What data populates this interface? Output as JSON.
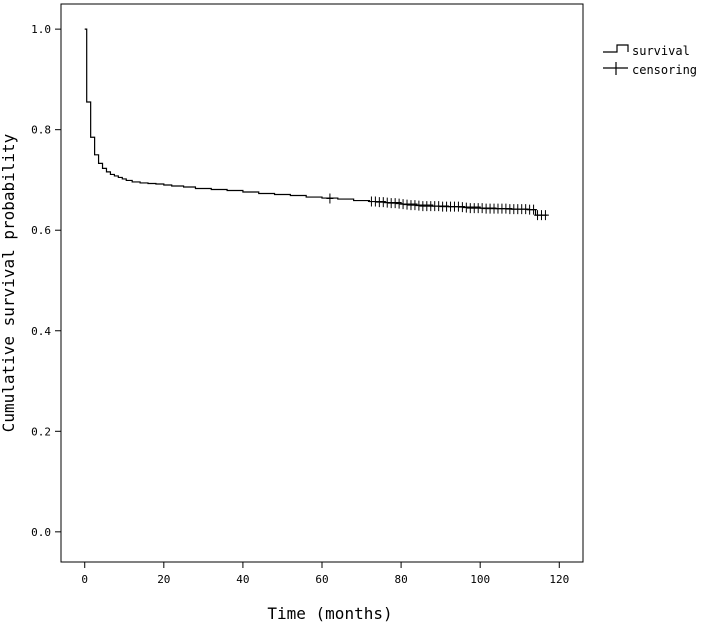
{
  "chart_data": {
    "type": "line",
    "title": "",
    "xlabel": "Time (months)",
    "ylabel": "Cumulative survival probability",
    "xlim": [
      -6,
      126
    ],
    "ylim": [
      -0.06,
      1.05
    ],
    "x_ticks": [
      0,
      20,
      40,
      60,
      80,
      100,
      120
    ],
    "y_ticks": [
      0.0,
      0.2,
      0.4,
      0.6,
      0.8,
      1.0
    ],
    "x_tick_labels": [
      "0",
      "20",
      "40",
      "60",
      "80",
      "100",
      "120"
    ],
    "y_tick_labels": [
      "0.0",
      "0.2",
      "0.4",
      "0.6",
      "0.8",
      "1.0"
    ],
    "grid": false,
    "legend_position": "outside-top-right",
    "legend": [
      {
        "label": "survival",
        "marker": "step"
      },
      {
        "label": "censoring",
        "marker": "plus"
      }
    ],
    "series": [
      {
        "name": "survival",
        "step": true,
        "x": [
          0,
          0.5,
          1.5,
          2.5,
          3.5,
          4.5,
          5.5,
          6.5,
          7.5,
          8.5,
          9.5,
          10.5,
          12,
          14,
          16,
          18,
          20,
          22,
          25,
          28,
          32,
          36,
          40,
          44,
          48,
          52,
          56,
          60,
          64,
          68,
          72,
          76,
          80,
          84,
          88,
          92,
          96,
          100,
          104,
          108,
          112,
          114,
          117
        ],
        "y": [
          1.0,
          0.855,
          0.785,
          0.75,
          0.733,
          0.723,
          0.716,
          0.711,
          0.708,
          0.705,
          0.702,
          0.699,
          0.696,
          0.694,
          0.693,
          0.692,
          0.69,
          0.688,
          0.686,
          0.683,
          0.681,
          0.679,
          0.676,
          0.673,
          0.671,
          0.669,
          0.666,
          0.664,
          0.662,
          0.659,
          0.657,
          0.655,
          0.652,
          0.65,
          0.648,
          0.647,
          0.646,
          0.644,
          0.643,
          0.642,
          0.641,
          0.63,
          0.63
        ]
      }
    ],
    "censoring": {
      "name": "censoring",
      "x": [
        62,
        72.5,
        73.5,
        74.5,
        75.5,
        76.5,
        77.5,
        78.5,
        79.5,
        80.5,
        81.5,
        82.5,
        83.5,
        84.5,
        85.5,
        86.5,
        87.5,
        88.5,
        89.5,
        90.5,
        91.5,
        92.5,
        93.5,
        94.5,
        95.5,
        96.5,
        97.5,
        98.5,
        99.5,
        100.5,
        101.5,
        102.5,
        103.5,
        104.5,
        105.5,
        106.5,
        107.5,
        108.5,
        109.5,
        110.5,
        111.5,
        112.5,
        113.5,
        114.5,
        115.5,
        116.5
      ],
      "y": [
        0.663,
        0.657,
        0.657,
        0.656,
        0.656,
        0.655,
        0.654,
        0.654,
        0.653,
        0.652,
        0.651,
        0.65,
        0.65,
        0.649,
        0.648,
        0.648,
        0.648,
        0.648,
        0.648,
        0.647,
        0.647,
        0.647,
        0.647,
        0.647,
        0.646,
        0.645,
        0.644,
        0.644,
        0.644,
        0.644,
        0.643,
        0.643,
        0.643,
        0.643,
        0.643,
        0.643,
        0.642,
        0.642,
        0.642,
        0.642,
        0.642,
        0.641,
        0.641,
        0.63,
        0.63,
        0.63
      ]
    }
  }
}
